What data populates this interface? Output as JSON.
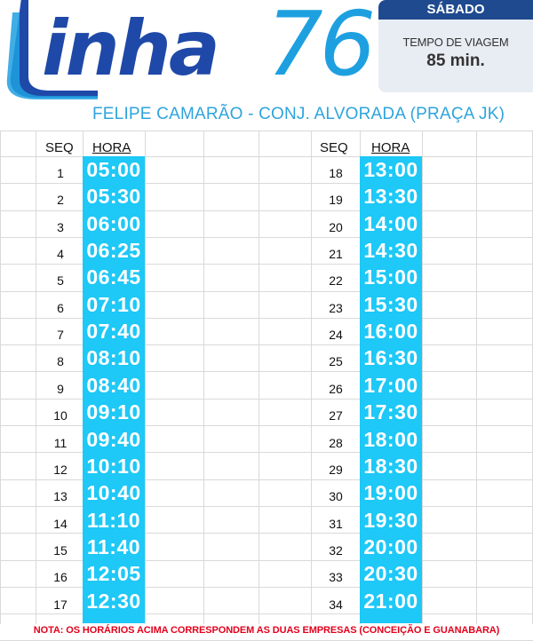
{
  "header": {
    "logo_word": "inha",
    "logo_number": "76",
    "route_name": "FELIPE CAMARÃO - CONJ. ALVORADA (PRAÇA JK)"
  },
  "info": {
    "day": "SÁBADO",
    "travel_time_label": "TEMPO DE VIAGEM",
    "travel_time_value": "85 min."
  },
  "table": {
    "seq_header": "SEQ",
    "time_header": "HORA",
    "left": [
      {
        "seq": "1",
        "time": "05:00"
      },
      {
        "seq": "2",
        "time": "05:30"
      },
      {
        "seq": "3",
        "time": "06:00"
      },
      {
        "seq": "4",
        "time": "06:25"
      },
      {
        "seq": "5",
        "time": "06:45"
      },
      {
        "seq": "6",
        "time": "07:10"
      },
      {
        "seq": "7",
        "time": "07:40"
      },
      {
        "seq": "8",
        "time": "08:10"
      },
      {
        "seq": "9",
        "time": "08:40"
      },
      {
        "seq": "10",
        "time": "09:10"
      },
      {
        "seq": "11",
        "time": "09:40"
      },
      {
        "seq": "12",
        "time": "10:10"
      },
      {
        "seq": "13",
        "time": "10:40"
      },
      {
        "seq": "14",
        "time": "11:10"
      },
      {
        "seq": "15",
        "time": "11:40"
      },
      {
        "seq": "16",
        "time": "12:05"
      },
      {
        "seq": "17",
        "time": "12:30"
      }
    ],
    "right": [
      {
        "seq": "18",
        "time": "13:00"
      },
      {
        "seq": "19",
        "time": "13:30"
      },
      {
        "seq": "20",
        "time": "14:00"
      },
      {
        "seq": "21",
        "time": "14:30"
      },
      {
        "seq": "22",
        "time": "15:00"
      },
      {
        "seq": "23",
        "time": "15:30"
      },
      {
        "seq": "24",
        "time": "16:00"
      },
      {
        "seq": "25",
        "time": "16:30"
      },
      {
        "seq": "26",
        "time": "17:00"
      },
      {
        "seq": "27",
        "time": "17:30"
      },
      {
        "seq": "28",
        "time": "18:00"
      },
      {
        "seq": "29",
        "time": "18:30"
      },
      {
        "seq": "30",
        "time": "19:00"
      },
      {
        "seq": "31",
        "time": "19:30"
      },
      {
        "seq": "32",
        "time": "20:00"
      },
      {
        "seq": "33",
        "time": "20:30"
      },
      {
        "seq": "34",
        "time": "21:00"
      }
    ]
  },
  "footer": {
    "note": "NOTA: OS HORÁRIOS ACIMA CORRESPONDEM AS DUAS EMPRESAS  (CONCEIÇÃO E GUANABARA)"
  },
  "colors": {
    "brand_dark": "#1f49a8",
    "brand_light": "#1ea0e0",
    "time_band": "#1ec8f7",
    "note_red": "#e3001b"
  }
}
